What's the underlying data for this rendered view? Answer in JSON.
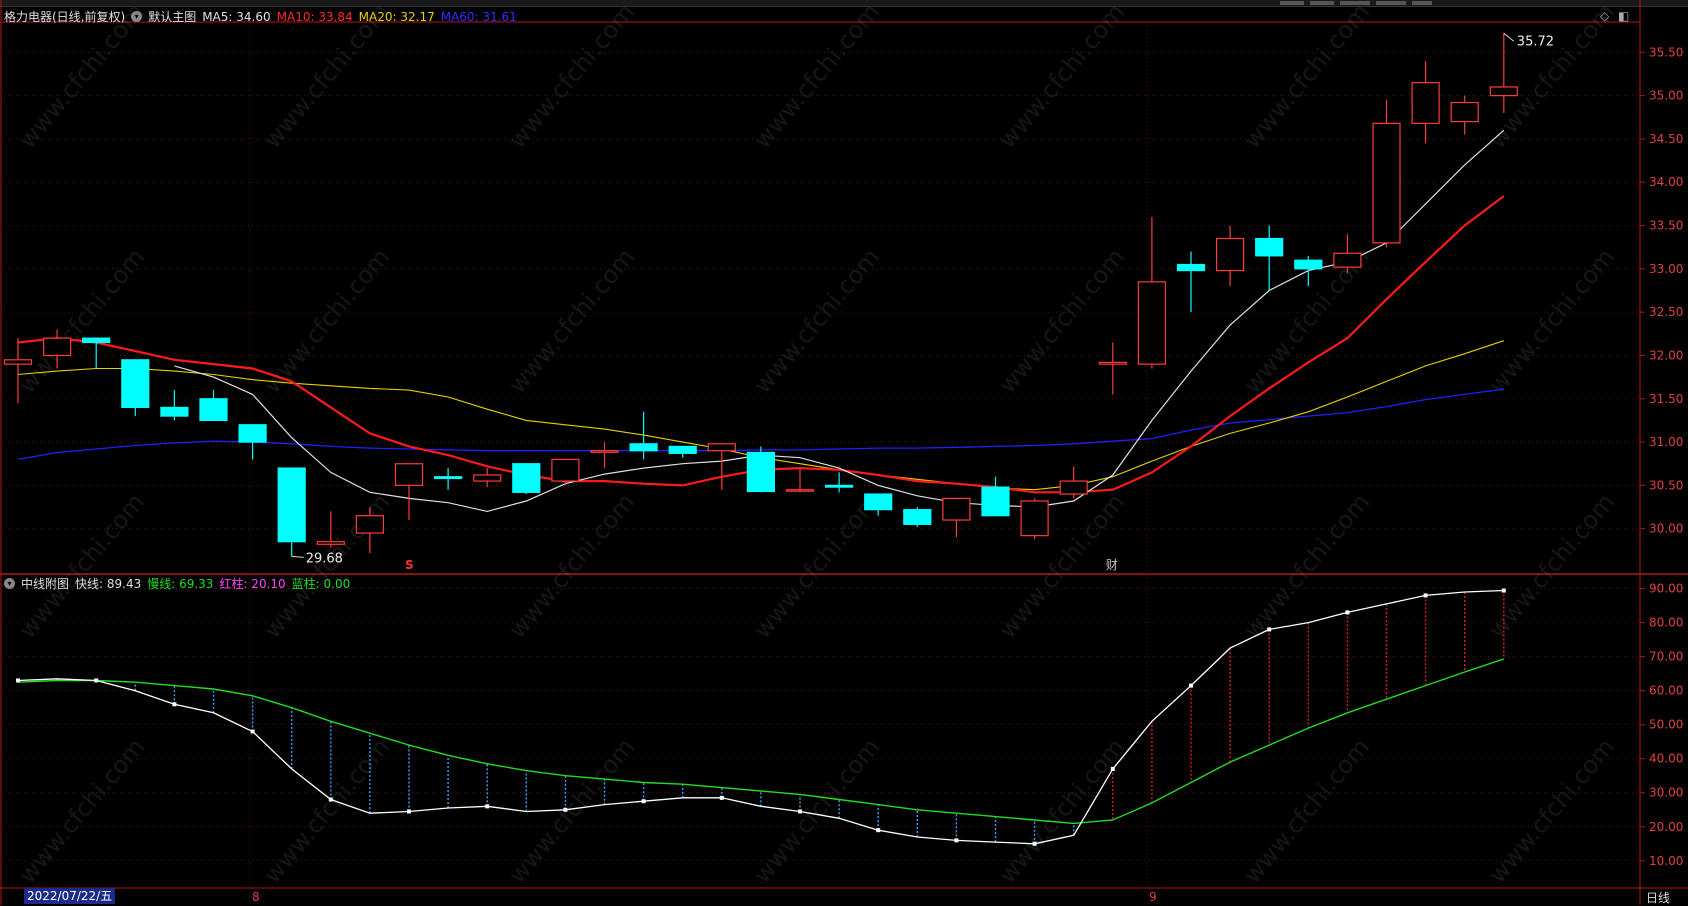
{
  "header": {
    "stock_title": "格力电器(日线,前复权)",
    "main_chart_label": "默认主图",
    "ma5": "MA5: 34.60",
    "ma10": "MA10: 33.84",
    "ma20": "MA20: 32.17",
    "ma60": "MA60: 31.61"
  },
  "sub_header": {
    "indicator_label": "中线附图",
    "fast": "快线: 89.43",
    "slow": "慢线: 69.33",
    "red_bar": "红柱: 20.10",
    "blue_bar": "蓝柱: 0.00"
  },
  "footer": {
    "date_label": "2022/07/22/五",
    "month_ticks": [
      "8",
      "9"
    ],
    "period_label": "日线"
  },
  "annotations": {
    "high_label": "35.72",
    "low_label": "29.68",
    "marker_s": "S",
    "marker_cai": "财"
  },
  "colors": {
    "up": "#ff3b3b",
    "down": "#00ffff",
    "ma5": "#e0e0e0",
    "ma10": "#ff1a1a",
    "ma20": "#e6d200",
    "ma60": "#2020ff",
    "fast": "#ffffff",
    "slow": "#22dd22",
    "border": "#b01818"
  },
  "chart_data": [
    {
      "type": "candlestick",
      "title": "格力电器(日线,前复权)",
      "y_ticks": [
        30.0,
        30.5,
        31.0,
        31.5,
        32.0,
        32.5,
        33.0,
        33.5,
        34.0,
        34.5,
        35.0,
        35.5
      ],
      "ylim": [
        29.5,
        35.85
      ],
      "candles": [
        {
          "o": 31.9,
          "h": 32.2,
          "l": 31.45,
          "c": 31.95
        },
        {
          "o": 32.0,
          "h": 32.3,
          "l": 31.85,
          "c": 32.2
        },
        {
          "o": 32.2,
          "h": 32.2,
          "l": 31.85,
          "c": 32.15
        },
        {
          "o": 31.95,
          "h": 31.95,
          "l": 31.3,
          "c": 31.4
        },
        {
          "o": 31.4,
          "h": 31.6,
          "l": 31.25,
          "c": 31.3
        },
        {
          "o": 31.5,
          "h": 31.6,
          "l": 31.25,
          "c": 31.25
        },
        {
          "o": 31.2,
          "h": 31.2,
          "l": 30.8,
          "c": 31.0
        },
        {
          "o": 30.7,
          "h": 30.7,
          "l": 29.68,
          "c": 29.85
        },
        {
          "o": 29.82,
          "h": 30.2,
          "l": 29.78,
          "c": 29.85
        },
        {
          "o": 29.95,
          "h": 30.25,
          "l": 29.72,
          "c": 30.15
        },
        {
          "o": 30.5,
          "h": 30.7,
          "l": 30.1,
          "c": 30.75
        },
        {
          "o": 30.6,
          "h": 30.7,
          "l": 30.45,
          "c": 30.58
        },
        {
          "o": 30.55,
          "h": 30.7,
          "l": 30.48,
          "c": 30.62
        },
        {
          "o": 30.75,
          "h": 30.75,
          "l": 30.4,
          "c": 30.42
        },
        {
          "o": 30.55,
          "h": 30.8,
          "l": 30.5,
          "c": 30.8
        },
        {
          "o": 30.9,
          "h": 31.0,
          "l": 30.7,
          "c": 30.9
        },
        {
          "o": 30.98,
          "h": 31.35,
          "l": 30.8,
          "c": 30.9
        },
        {
          "o": 30.95,
          "h": 30.95,
          "l": 30.82,
          "c": 30.87
        },
        {
          "o": 30.9,
          "h": 30.95,
          "l": 30.45,
          "c": 30.98
        },
        {
          "o": 30.88,
          "h": 30.95,
          "l": 30.42,
          "c": 30.43
        },
        {
          "o": 30.45,
          "h": 30.7,
          "l": 30.42,
          "c": 30.45
        },
        {
          "o": 30.5,
          "h": 30.65,
          "l": 30.42,
          "c": 30.48
        },
        {
          "o": 30.4,
          "h": 30.4,
          "l": 30.15,
          "c": 30.22
        },
        {
          "o": 30.22,
          "h": 30.25,
          "l": 30.02,
          "c": 30.05
        },
        {
          "o": 30.1,
          "h": 30.35,
          "l": 29.9,
          "c": 30.35
        },
        {
          "o": 30.48,
          "h": 30.6,
          "l": 30.15,
          "c": 30.15
        },
        {
          "o": 29.92,
          "h": 30.35,
          "l": 29.88,
          "c": 30.32
        },
        {
          "o": 30.4,
          "h": 30.72,
          "l": 30.35,
          "c": 30.55
        },
        {
          "o": 31.9,
          "h": 32.15,
          "l": 31.55,
          "c": 31.92
        },
        {
          "o": 31.9,
          "h": 33.6,
          "l": 31.85,
          "c": 32.85
        },
        {
          "o": 33.05,
          "h": 33.2,
          "l": 32.5,
          "c": 32.98
        },
        {
          "o": 32.98,
          "h": 33.5,
          "l": 32.8,
          "c": 33.35
        },
        {
          "o": 33.35,
          "h": 33.5,
          "l": 32.75,
          "c": 33.15
        },
        {
          "o": 33.1,
          "h": 33.15,
          "l": 32.8,
          "c": 33.0
        },
        {
          "o": 33.02,
          "h": 33.4,
          "l": 32.95,
          "c": 33.18
        },
        {
          "o": 33.3,
          "h": 34.95,
          "l": 33.25,
          "c": 34.68
        },
        {
          "o": 34.68,
          "h": 35.4,
          "l": 34.45,
          "c": 35.15
        },
        {
          "o": 34.7,
          "h": 35.0,
          "l": 34.55,
          "c": 34.92
        },
        {
          "o": 35.0,
          "h": 35.72,
          "l": 34.8,
          "c": 35.1
        }
      ],
      "ma5": [
        null,
        null,
        null,
        null,
        31.88,
        31.75,
        31.55,
        31.05,
        30.65,
        30.42,
        30.35,
        30.3,
        30.2,
        30.32,
        30.52,
        30.63,
        30.7,
        30.75,
        30.78,
        30.85,
        30.82,
        30.7,
        30.5,
        30.38,
        30.3,
        30.27,
        30.25,
        30.32,
        30.62,
        31.25,
        31.82,
        32.35,
        32.75,
        32.98,
        33.08,
        33.3,
        33.75,
        34.2,
        34.6
      ],
      "ma10": [
        32.15,
        32.2,
        32.15,
        32.05,
        31.95,
        31.9,
        31.85,
        31.7,
        31.4,
        31.1,
        30.95,
        30.85,
        30.72,
        30.62,
        30.55,
        30.55,
        30.52,
        30.5,
        30.6,
        30.68,
        30.7,
        30.68,
        30.62,
        30.55,
        30.52,
        30.48,
        30.42,
        30.42,
        30.45,
        30.65,
        30.95,
        31.3,
        31.62,
        31.92,
        32.2,
        32.65,
        33.08,
        33.5,
        33.84
      ],
      "ma20": [
        31.78,
        31.82,
        31.85,
        31.85,
        31.82,
        31.78,
        31.72,
        31.68,
        31.65,
        31.62,
        31.6,
        31.52,
        31.38,
        31.25,
        31.2,
        31.15,
        31.08,
        31.0,
        30.92,
        30.82,
        30.75,
        30.68,
        30.62,
        30.57,
        30.52,
        30.47,
        30.45,
        30.5,
        30.6,
        30.78,
        30.95,
        31.1,
        31.22,
        31.35,
        31.52,
        31.7,
        31.88,
        32.02,
        32.17
      ],
      "ma60": [
        30.8,
        30.88,
        30.92,
        30.96,
        30.99,
        31.01,
        31.0,
        30.98,
        30.95,
        30.93,
        30.92,
        30.91,
        30.9,
        30.9,
        30.9,
        30.9,
        30.9,
        30.9,
        30.9,
        30.91,
        30.91,
        30.92,
        30.93,
        30.93,
        30.94,
        30.95,
        30.96,
        30.98,
        31.01,
        31.04,
        31.14,
        31.22,
        31.26,
        31.3,
        31.34,
        31.41,
        31.49,
        31.55,
        31.61
      ],
      "annotations": {
        "high": "35.72",
        "low": "29.68"
      }
    },
    {
      "type": "line",
      "title": "中线附图",
      "y_ticks": [
        10,
        20,
        30,
        40,
        50,
        60,
        70,
        80,
        90
      ],
      "ylim": [
        2,
        94
      ],
      "series": [
        {
          "name": "快线",
          "values": [
            63,
            63.5,
            63,
            60,
            56,
            53.5,
            48,
            37,
            28,
            24,
            24.5,
            25.5,
            26,
            24.5,
            25,
            26.5,
            27.5,
            28.5,
            28.5,
            26,
            24.5,
            22.5,
            19,
            17,
            16,
            15.5,
            15,
            17.5,
            37,
            51,
            61.5,
            72.5,
            78,
            80,
            83,
            85.5,
            88,
            89,
            89.43
          ]
        },
        {
          "name": "慢线",
          "values": [
            62.5,
            63,
            63,
            62.5,
            61.5,
            60.5,
            58.5,
            55,
            51,
            47.5,
            44,
            41,
            38.5,
            36.5,
            35,
            34,
            33,
            32.5,
            31.5,
            30.5,
            29.5,
            28,
            26.5,
            25,
            24,
            23,
            22,
            21,
            22,
            27,
            33,
            39,
            44,
            49,
            53.5,
            57.5,
            61.5,
            65.5,
            69.33
          ]
        }
      ]
    }
  ]
}
